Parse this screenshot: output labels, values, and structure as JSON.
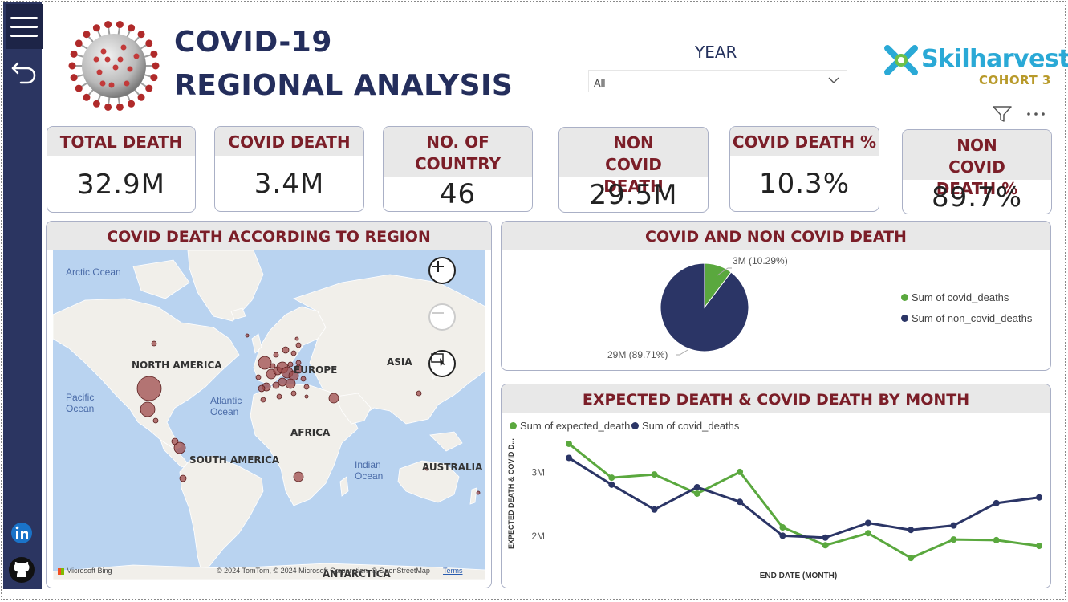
{
  "header": {
    "title_line1": "COVID-19",
    "title_line2": "REGIONAL ANALYSIS",
    "year_label": "YEAR",
    "year_value": "All"
  },
  "logo": {
    "brand": "Skilharvest",
    "cohort": "COHORT 3"
  },
  "kpis": [
    {
      "label": "TOTAL DEATH",
      "value": "32.9M"
    },
    {
      "label": "COVID DEATH",
      "value": "3.4M"
    },
    {
      "label": "NO. OF COUNTRY",
      "value": "46"
    },
    {
      "label": "NON COVID DEATH",
      "value": "29.5M"
    },
    {
      "label": "COVID DEATH %",
      "value": "10.3%"
    },
    {
      "label": "NON COVID DEATH %",
      "value": "89.7%"
    }
  ],
  "map_panel": {
    "title": "COVID DEATH ACCORDING TO REGION",
    "labels": {
      "north_america": "NORTH AMERICA",
      "europe": "EUROPE",
      "asia": "ASIA",
      "africa": "AFRICA",
      "south_america": "SOUTH AMERICA",
      "australia": "AUSTRALIA",
      "antarctica": "ANTARCTICA"
    },
    "oceans": {
      "arctic": "Arctic Ocean",
      "pacific": "Pacific Ocean",
      "atlantic": "Atlantic Ocean",
      "indian": "Indian Ocean"
    },
    "attribution": "© 2024 TomTom, © 2024 Microsoft Corporation, © OpenStreetMap",
    "terms": "Terms",
    "bing": "Microsoft Bing"
  },
  "pie_panel": {
    "title": "COVID AND NON COVID DEATH",
    "slices": [
      {
        "name": "Sum of covid_deaths",
        "label": "3M (10.29%)",
        "percent": 10.29,
        "color": "#5aa83e"
      },
      {
        "name": "Sum of non_covid_deaths",
        "label": "29M (89.71%)",
        "percent": 89.71,
        "color": "#2b3566"
      }
    ]
  },
  "line_panel": {
    "title": "EXPECTED DEATH & COVID DEATH BY MONTH",
    "ylabel": "EXPECTED DEATH & COVID D...",
    "xlabel": "END DATE (MONTH)",
    "yticks": [
      "3M",
      "2M"
    ]
  },
  "chart_data": {
    "type": "line",
    "x": [
      1,
      2,
      3,
      4,
      5,
      6,
      7,
      8,
      9,
      10,
      11,
      12
    ],
    "xlabel": "END DATE (MONTH)",
    "ylabel": "EXPECTED DEATH & COVID D...",
    "ylim": [
      1.7,
      3.5
    ],
    "yticks": [
      2,
      3
    ],
    "series": [
      {
        "name": "Sum of expected_deaths",
        "color": "#5aa83e",
        "values": [
          3.45,
          2.92,
          2.97,
          2.67,
          3.01,
          2.14,
          1.86,
          2.05,
          1.66,
          1.95,
          1.94,
          1.85
        ]
      },
      {
        "name": "Sum of covid_deaths",
        "color": "#2b3566",
        "values": [
          3.23,
          2.81,
          2.42,
          2.77,
          2.54,
          2.01,
          1.98,
          2.21,
          2.1,
          2.17,
          2.52,
          2.61
        ]
      }
    ],
    "legend": "top-left"
  },
  "map_bubbles": {
    "color": "#8b3a3a"
  }
}
